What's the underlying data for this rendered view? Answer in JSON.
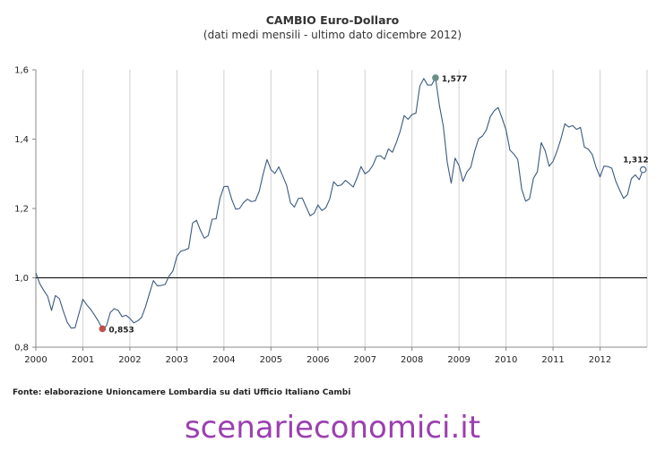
{
  "chart_data": {
    "type": "line",
    "title": "CAMBIO Euro-Dollaro",
    "subtitle": "(dati medi mensili - ultimo  dato dicembre 2012)",
    "xlabel": "",
    "ylabel": "",
    "ylim": [
      0.8,
      1.6
    ],
    "yticks": [
      "0,8",
      "1,0",
      "1,2",
      "1,4",
      "1,6"
    ],
    "xticks": [
      "2000",
      "2001",
      "2002",
      "2003",
      "2004",
      "2005",
      "2006",
      "2007",
      "2008",
      "2009",
      "2010",
      "2011",
      "2012"
    ],
    "reference_line": 1.0,
    "grid": "vertical",
    "series": [
      {
        "name": "EUR/USD",
        "start_year": 2000,
        "values": [
          1.014,
          0.983,
          0.964,
          0.947,
          0.906,
          0.949,
          0.94,
          0.904,
          0.872,
          0.855,
          0.856,
          0.897,
          0.938,
          0.922,
          0.909,
          0.892,
          0.874,
          0.853,
          0.861,
          0.9,
          0.911,
          0.906,
          0.888,
          0.892,
          0.883,
          0.87,
          0.876,
          0.886,
          0.917,
          0.955,
          0.992,
          0.977,
          0.978,
          0.981,
          1.005,
          1.02,
          1.062,
          1.077,
          1.08,
          1.085,
          1.158,
          1.166,
          1.137,
          1.114,
          1.122,
          1.169,
          1.17,
          1.229,
          1.263,
          1.264,
          1.226,
          1.198,
          1.2,
          1.217,
          1.227,
          1.22,
          1.222,
          1.249,
          1.299,
          1.341,
          1.312,
          1.301,
          1.32,
          1.294,
          1.267,
          1.216,
          1.204,
          1.229,
          1.23,
          1.204,
          1.179,
          1.186,
          1.21,
          1.194,
          1.202,
          1.227,
          1.277,
          1.265,
          1.268,
          1.281,
          1.272,
          1.262,
          1.289,
          1.321,
          1.3,
          1.308,
          1.324,
          1.351,
          1.352,
          1.342,
          1.372,
          1.362,
          1.39,
          1.423,
          1.468,
          1.457,
          1.471,
          1.475,
          1.553,
          1.575,
          1.556,
          1.556,
          1.577,
          1.497,
          1.437,
          1.333,
          1.273,
          1.345,
          1.324,
          1.278,
          1.305,
          1.319,
          1.365,
          1.401,
          1.409,
          1.427,
          1.465,
          1.482,
          1.491,
          1.46,
          1.427,
          1.368,
          1.357,
          1.341,
          1.256,
          1.221,
          1.228,
          1.287,
          1.306,
          1.39,
          1.366,
          1.322,
          1.336,
          1.365,
          1.4,
          1.444,
          1.435,
          1.439,
          1.428,
          1.434,
          1.377,
          1.371,
          1.356,
          1.318,
          1.291,
          1.322,
          1.321,
          1.316,
          1.279,
          1.253,
          1.229,
          1.24,
          1.286,
          1.297,
          1.283,
          1.312
        ]
      }
    ],
    "annotations": [
      {
        "label": "0,853",
        "year_index": 17,
        "value": 0.853,
        "color": "#c0504d",
        "filled": true
      },
      {
        "label": "1,577",
        "year_index": 102,
        "value": 1.577,
        "color": "#6b8e86",
        "filled": true
      },
      {
        "label": "1,312",
        "year_index": 155,
        "value": 1.312,
        "color": "#4a6a8a",
        "filled": false
      }
    ],
    "line_color": "#3b5a80"
  },
  "source_text": "Fonte: elaborazione Unioncamere Lombardia su dati Ufficio Italiano Cambi",
  "watermark_text": "scenarieconomici.it"
}
